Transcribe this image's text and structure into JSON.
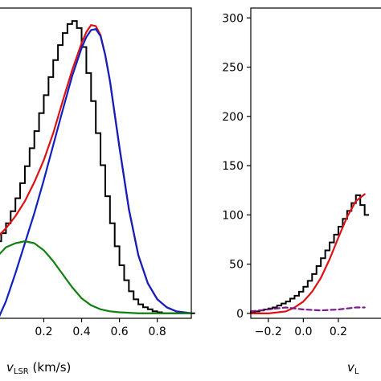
{
  "chart_data": [
    {
      "type": "line",
      "panel": "left",
      "title": "",
      "xlabel": {
        "symbol": "v",
        "subscript": "LSR",
        "unit": " (km/s)"
      },
      "ylabel": "",
      "xlim": [
        -0.04,
        0.98
      ],
      "ylim": [
        -5,
        305
      ],
      "xticks": [
        0.2,
        0.4,
        0.6,
        0.8
      ],
      "xtick_labels": [
        "0.2",
        "0.4",
        "0.6",
        "0.8"
      ],
      "yticks": [],
      "grid": false,
      "legend": "none",
      "histogram": {
        "name": "",
        "color": "#000000",
        "bin_width": 0.025,
        "bin_edges_start": -0.05,
        "counts": [
          72,
          80,
          90,
          102,
          115,
          130,
          147,
          165,
          182,
          200,
          218,
          236,
          253,
          268,
          280,
          289,
          292,
          285,
          266,
          240,
          212,
          180,
          148,
          117,
          90,
          67,
          48,
          33,
          22,
          14,
          9,
          6,
          4,
          2,
          1,
          0,
          0,
          0,
          0,
          0,
          0,
          0
        ]
      },
      "series": [
        {
          "name": "",
          "color": "#dd1111",
          "x": [
            -0.04,
            0.0,
            0.05,
            0.1,
            0.15,
            0.2,
            0.25,
            0.3,
            0.35,
            0.4,
            0.425,
            0.45,
            0.475,
            0.5,
            0.525,
            0.55,
            0.6,
            0.65,
            0.7,
            0.75,
            0.8,
            0.85,
            0.9,
            0.98
          ],
          "y": [
            77,
            85,
            97,
            112,
            131,
            153,
            180,
            212,
            243,
            270,
            281,
            288,
            287,
            278,
            258,
            232,
            166,
            104,
            58,
            30,
            14,
            6,
            2,
            0
          ]
        },
        {
          "name": "",
          "color": "#1020c0",
          "x": [
            -0.04,
            0.0,
            0.05,
            0.1,
            0.15,
            0.2,
            0.25,
            0.3,
            0.35,
            0.4,
            0.425,
            0.45,
            0.475,
            0.5,
            0.525,
            0.55,
            0.6,
            0.65,
            0.7,
            0.75,
            0.8,
            0.85,
            0.9,
            0.98
          ],
          "y": [
            -5,
            12,
            40,
            70,
            100,
            133,
            168,
            203,
            237,
            265,
            276,
            283,
            284,
            277,
            258,
            232,
            166,
            104,
            58,
            30,
            14,
            6,
            2,
            0
          ]
        },
        {
          "name": "",
          "color": "#108010",
          "x": [
            -0.04,
            0.0,
            0.05,
            0.1,
            0.15,
            0.2,
            0.25,
            0.3,
            0.35,
            0.4,
            0.45,
            0.5,
            0.55,
            0.6,
            0.7,
            0.8,
            0.9,
            0.98
          ],
          "y": [
            58,
            66,
            70,
            72,
            70,
            63,
            52,
            39,
            26,
            15,
            8,
            4,
            2,
            1,
            0,
            0,
            0,
            0
          ]
        }
      ]
    },
    {
      "type": "line",
      "panel": "right",
      "title": "",
      "xlabel": {
        "symbol": "v",
        "subscript": "L",
        "unit": ""
      },
      "ylabel": "",
      "xlim": [
        -0.3,
        0.48
      ],
      "ylim": [
        -5,
        310
      ],
      "xticks": [
        -0.2,
        0.0,
        0.2
      ],
      "xtick_labels": [
        "−0.2",
        "0.0",
        "0.2"
      ],
      "yticks": [
        0,
        50,
        100,
        150,
        200,
        250,
        300
      ],
      "ytick_labels": [
        "0",
        "50",
        "100",
        "150",
        "200",
        "250",
        "300"
      ],
      "grid": false,
      "legend": "none",
      "histogram": {
        "name": "",
        "color": "#000000",
        "bin_width": 0.025,
        "bin_edges_start": -0.3,
        "counts": [
          1,
          2,
          3,
          4,
          5,
          6,
          8,
          10,
          12,
          15,
          18,
          22,
          27,
          33,
          40,
          48,
          56,
          64,
          72,
          80,
          88,
          96,
          104,
          112,
          120,
          110,
          100
        ]
      },
      "series": [
        {
          "name": "",
          "color": "#dd1111",
          "x": [
            -0.3,
            -0.2,
            -0.1,
            -0.05,
            0.0,
            0.05,
            0.1,
            0.15,
            0.2,
            0.25,
            0.3,
            0.35
          ],
          "y": [
            0,
            0,
            2,
            6,
            12,
            22,
            36,
            55,
            77,
            98,
            114,
            121
          ]
        },
        {
          "name": "",
          "color": "#7a1a8c",
          "dashed": true,
          "x": [
            -0.3,
            -0.2,
            -0.1,
            0.0,
            0.1,
            0.2,
            0.3,
            0.35
          ],
          "y": [
            2,
            4,
            6,
            4,
            3,
            4,
            6,
            6
          ]
        }
      ]
    }
  ]
}
